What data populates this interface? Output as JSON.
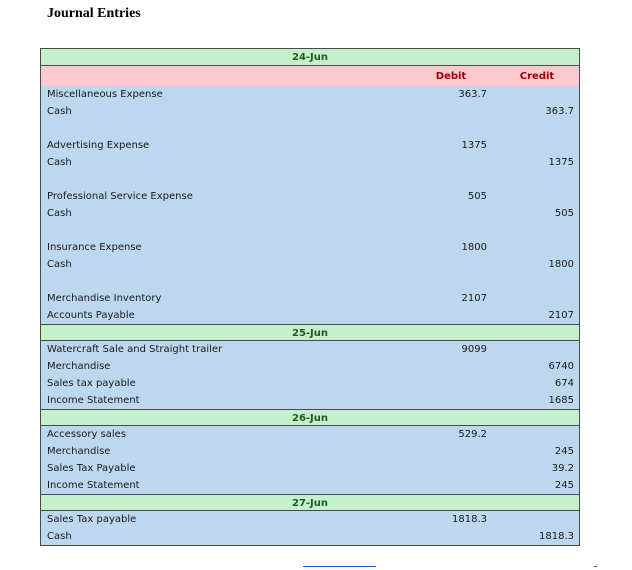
{
  "title": "Journal Entries",
  "headers": {
    "debit": "Debit",
    "credit": "Credit"
  },
  "sections": [
    {
      "date": "24-Jun",
      "groups": [
        [
          {
            "account": "Miscellaneous Expense",
            "debit": "363.7",
            "credit": ""
          },
          {
            "account": "Cash",
            "debit": "",
            "credit": "363.7"
          }
        ],
        [
          {
            "account": "Advertising Expense",
            "debit": "1375",
            "credit": ""
          },
          {
            "account": "Cash",
            "debit": "",
            "credit": "1375"
          }
        ],
        [
          {
            "account": "Professional Service Expense",
            "debit": "505",
            "credit": ""
          },
          {
            "account": "Cash",
            "debit": "",
            "credit": "505"
          }
        ],
        [
          {
            "account": "Insurance Expense",
            "debit": "1800",
            "credit": ""
          },
          {
            "account": "Cash",
            "debit": "",
            "credit": "1800"
          }
        ],
        [
          {
            "account": "Merchandise Inventory",
            "debit": "2107",
            "credit": ""
          },
          {
            "account": "Accounts Payable",
            "debit": "",
            "credit": "2107"
          }
        ]
      ]
    },
    {
      "date": "25-Jun",
      "groups": [
        [
          {
            "account": "Watercraft Sale and Straight trailer",
            "debit": "9099",
            "credit": ""
          },
          {
            "account": "Merchandise",
            "debit": "",
            "credit": "6740"
          },
          {
            "account": "Sales tax payable",
            "debit": "",
            "credit": "674"
          },
          {
            "account": "Income Statement",
            "debit": "",
            "credit": "1685"
          }
        ]
      ]
    },
    {
      "date": "26-Jun",
      "groups": [
        [
          {
            "account": "Accessory sales",
            "debit": "529.2",
            "credit": ""
          },
          {
            "account": "Merchandise",
            "debit": "",
            "credit": "245"
          },
          {
            "account": "Sales Tax Payable",
            "debit": "",
            "credit": "39.2"
          },
          {
            "account": "Income Statement",
            "debit": "",
            "credit": "245"
          }
        ]
      ]
    },
    {
      "date": "27-Jun",
      "groups": [
        [
          {
            "account": "Sales Tax payable",
            "debit": "1818.3",
            "credit": ""
          },
          {
            "account": "Cash",
            "debit": "",
            "credit": "1818.3"
          }
        ]
      ]
    }
  ]
}
